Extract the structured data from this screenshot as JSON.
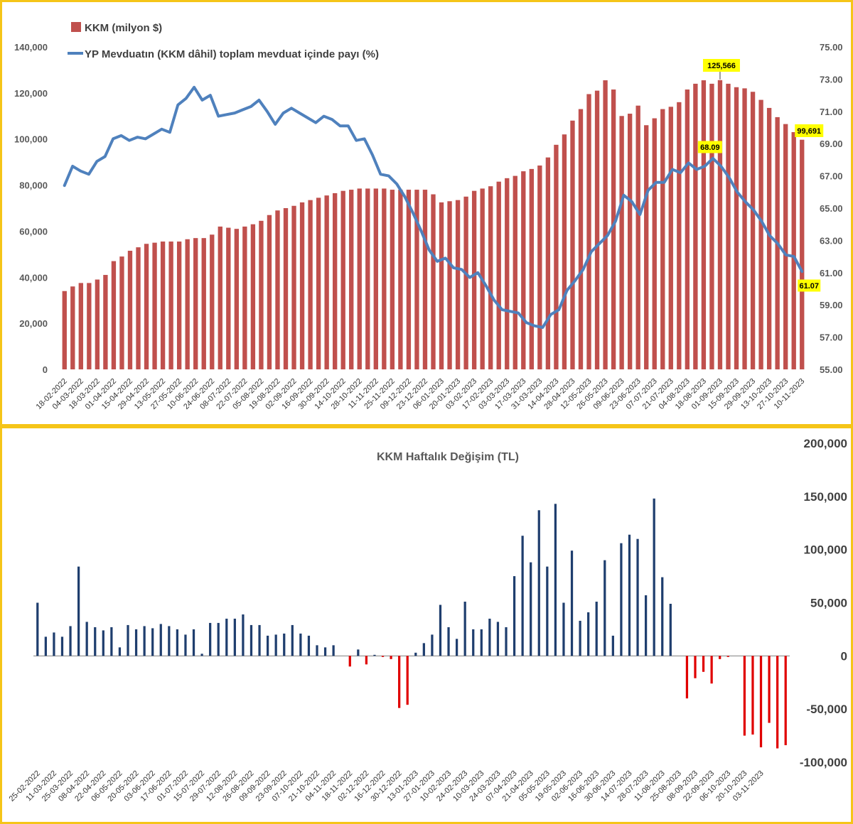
{
  "chart_data": [
    {
      "type": "bar",
      "legend_placement": "top-left",
      "grid": false,
      "x_label_interval_weeks": 2,
      "x_ticks": [
        "18-02-2022",
        "04-03-2022",
        "18-03-2022",
        "01-04-2022",
        "15-04-2022",
        "29-04-2022",
        "13-05-2022",
        "27-05-2022",
        "10-06-2022",
        "24-06-2022",
        "08-07-2022",
        "22-07-2022",
        "05-08-2022",
        "19-08-2022",
        "02-09-2022",
        "16-09-2022",
        "30-09-2022",
        "14-10-2022",
        "28-10-2022",
        "11-11-2022",
        "25-11-2022",
        "09-12-2022",
        "23-12-2022",
        "06-01-2023",
        "20-01-2023",
        "03-02-2023",
        "17-02-2023",
        "03-03-2023",
        "17-03-2023",
        "31-03-2023",
        "14-04-2023",
        "28-04-2023",
        "12-05-2023",
        "26-05-2023",
        "09-06-2023",
        "23-06-2023",
        "07-07-2023",
        "21-07-2023",
        "04-08-2023",
        "18-08-2023",
        "01-09-2023",
        "15-09-2023",
        "29-09-2023",
        "13-10-2023",
        "27-10-2023",
        "10-11-2023"
      ],
      "y_left": {
        "range": [
          0,
          140000
        ],
        "ticks": [
          "0",
          "20,000",
          "40,000",
          "60,000",
          "80,000",
          "100,000",
          "120,000",
          "140,000"
        ]
      },
      "y_right": {
        "range": [
          55,
          75
        ],
        "ticks": [
          "55.00",
          "57.00",
          "59.00",
          "61.00",
          "63.00",
          "65.00",
          "67.00",
          "69.00",
          "71.00",
          "73.00",
          "75.00"
        ]
      },
      "series": [
        {
          "name": "KKM (milyon $)",
          "kind": "bar",
          "axis": "left",
          "color": "#c0504d",
          "values": [
            34000,
            36000,
            37500,
            37500,
            39000,
            41000,
            47000,
            49000,
            51500,
            53000,
            54500,
            55000,
            55500,
            55500,
            55500,
            56500,
            57000,
            57000,
            58500,
            62000,
            61500,
            61000,
            62000,
            63000,
            64500,
            67000,
            69000,
            70000,
            71000,
            72500,
            73500,
            74500,
            75500,
            76500,
            77500,
            78000,
            78500,
            78500,
            78500,
            78500,
            78000,
            78000,
            78000,
            78000,
            78000,
            76000,
            72500,
            73000,
            73500,
            75000,
            77500,
            78500,
            79500,
            81500,
            83000,
            84000,
            86000,
            87000,
            88500,
            92000,
            97500,
            102000,
            108000,
            113000,
            119500,
            121000,
            125500,
            121500,
            110000,
            111000,
            114500,
            106000,
            109000,
            113000,
            114000,
            116000,
            121500,
            124000,
            125500,
            124000,
            125566,
            124000,
            122500,
            122000,
            120500,
            117000,
            113500,
            109500,
            106500,
            103000,
            99691
          ],
          "labelled_points": [
            {
              "x": "01-09-2023",
              "value": "125,566"
            },
            {
              "x": "10-11-2023",
              "value": "99,691"
            }
          ]
        },
        {
          "name": "YP Mevduatın (KKM dâhil) toplam mevduat içinde payı (%)",
          "kind": "line",
          "axis": "right",
          "color": "#4f81bd",
          "values": [
            66.4,
            67.6,
            67.3,
            67.1,
            67.9,
            68.2,
            69.3,
            69.5,
            69.2,
            69.4,
            69.3,
            69.6,
            69.9,
            69.7,
            71.4,
            71.8,
            72.5,
            71.7,
            72.0,
            70.7,
            70.8,
            70.9,
            71.1,
            71.3,
            71.7,
            71.0,
            70.2,
            70.9,
            71.2,
            70.9,
            70.6,
            70.3,
            70.7,
            70.5,
            70.1,
            70.1,
            69.2,
            69.3,
            68.3,
            67.1,
            67.0,
            66.5,
            65.7,
            64.7,
            63.6,
            62.4,
            61.7,
            61.9,
            61.3,
            61.2,
            60.7,
            61.0,
            60.2,
            59.3,
            58.7,
            58.6,
            58.5,
            57.9,
            57.7,
            57.6,
            58.4,
            58.7,
            59.9,
            60.5,
            61.2,
            62.3,
            62.8,
            63.3,
            64.2,
            65.8,
            65.4,
            64.6,
            66.1,
            66.6,
            66.6,
            67.4,
            67.2,
            67.8,
            67.4,
            67.6,
            68.09,
            67.6,
            66.9,
            66.0,
            65.4,
            64.9,
            64.2,
            63.3,
            62.8,
            62.1,
            62.0,
            61.07
          ],
          "labelled_points": [
            {
              "x": "01-09-2023",
              "value": "68.09"
            },
            {
              "x": "10-11-2023",
              "value": "61.07"
            }
          ]
        }
      ]
    },
    {
      "type": "bar",
      "title": "KKM Haftalık Değişim (TL)",
      "grid": false,
      "x_label_interval_weeks": 2,
      "x_ticks": [
        "25-02-2022",
        "11-03-2022",
        "25-03-2022",
        "08-04-2022",
        "22-04-2022",
        "06-05-2022",
        "20-05-2022",
        "03-06-2022",
        "17-06-2022",
        "01-07-2022",
        "15-07-2022",
        "29-07-2022",
        "12-08-2022",
        "26-08-2022",
        "09-09-2022",
        "23-09-2022",
        "07-10-2022",
        "21-10-2022",
        "04-11-2022",
        "18-11-2022",
        "02-12-2022",
        "16-12-2022",
        "30-12-2022",
        "13-01-2023",
        "27-01-2023",
        "10-02-2023",
        "24-02-2023",
        "10-03-2023",
        "24-03-2023",
        "07-04-2023",
        "21-04-2023",
        "05-05-2023",
        "19-05-2023",
        "02-06-2023",
        "16-06-2023",
        "30-06-2023",
        "14-07-2023",
        "28-07-2023",
        "11-08-2023",
        "25-08-2023",
        "08-09-2023",
        "22-09-2023",
        "06-10-2023",
        "20-10-2023",
        "03-11-2023"
      ],
      "y_right": {
        "range": [
          -100000,
          200000
        ],
        "ticks": [
          "-100,000",
          "-50,000",
          "0",
          "50,000",
          "100,000",
          "150,000",
          "200,000"
        ]
      },
      "positive_color": "#1f3e6e",
      "negative_color": "#e00000",
      "values": [
        50000,
        18000,
        22000,
        18000,
        28000,
        84000,
        32000,
        27000,
        24000,
        27000,
        8000,
        29000,
        25000,
        28000,
        26000,
        30000,
        28000,
        25000,
        20000,
        25000,
        2000,
        31000,
        31000,
        35000,
        35000,
        39000,
        29000,
        29000,
        19000,
        20000,
        21000,
        29000,
        21000,
        19000,
        10000,
        8000,
        10000,
        0,
        -10000,
        6000,
        -8000,
        1000,
        -1000,
        -3000,
        -49000,
        -46000,
        3000,
        12000,
        20000,
        48000,
        27000,
        16000,
        51000,
        25000,
        25000,
        35000,
        32000,
        27000,
        75000,
        113000,
        88000,
        137000,
        84000,
        143000,
        50000,
        99000,
        33000,
        41000,
        51000,
        90000,
        19000,
        106000,
        114000,
        110000,
        57000,
        148000,
        74000,
        49000,
        0,
        -40000,
        -21000,
        -15000,
        -26000,
        -3000,
        -1000,
        0,
        -75000,
        -74000,
        -86000,
        -63000,
        -87000,
        -84000
      ]
    }
  ]
}
